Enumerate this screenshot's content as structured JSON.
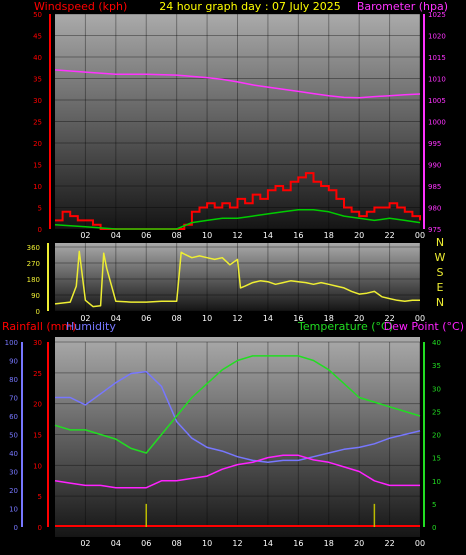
{
  "colors": {
    "background": "#000000",
    "wind": "#ff0000",
    "gust": "#ffffff",
    "wind_avg": "#00cc00",
    "barometer": "#ff33ff",
    "direction": "#eeee33",
    "humidity": "#7777ff",
    "temperature": "#22dd22",
    "dewpoint": "#ff22ff",
    "rainfall": "#ff0000",
    "rain_marker": "#bbbb00",
    "title": "#ffff00"
  },
  "header": {
    "windspeed_label": "Windspeed (kph)",
    "title": "24 hour graph day : 07 July 2025",
    "barometer_label": "Barometer (hpa)"
  },
  "chart_data": [
    {
      "type": "line",
      "name": "wind-barometer",
      "x_ticks": [
        "02",
        "04",
        "06",
        "08",
        "10",
        "12",
        "14",
        "16",
        "18",
        "20",
        "22",
        "00"
      ],
      "left_axis": {
        "label": "Windspeed (kph)",
        "ylim": [
          0,
          50
        ],
        "ticks": [
          0,
          5,
          10,
          15,
          20,
          25,
          30,
          35,
          40,
          45,
          50
        ]
      },
      "right_axis": {
        "label": "Barometer (hpa)",
        "ylim": [
          975,
          1025
        ],
        "ticks": [
          975,
          980,
          985,
          990,
          995,
          1000,
          1005,
          1010,
          1015,
          1020,
          1025
        ]
      },
      "barometer": {
        "x": [
          0,
          2,
          4,
          6,
          8,
          10,
          11,
          12,
          13,
          14,
          15,
          16,
          17,
          18,
          19,
          20,
          21,
          22,
          23,
          24
        ],
        "values": [
          1012,
          1011.5,
          1011,
          1011,
          1010.8,
          1010.2,
          1009.8,
          1009.2,
          1008.5,
          1008,
          1007.5,
          1007,
          1006.5,
          1006,
          1005.6,
          1005.5,
          1005.8,
          1006,
          1006.2,
          1006.4
        ]
      },
      "wind": {
        "x": [
          0,
          0.5,
          1,
          1.5,
          2,
          2.5,
          3,
          4,
          5,
          6,
          7,
          8,
          8.5,
          9,
          9.5,
          10,
          10.5,
          11,
          11.5,
          12,
          12.5,
          13,
          13.5,
          14,
          14.5,
          15,
          15.5,
          16,
          16.5,
          17,
          17.5,
          18,
          18.5,
          19,
          19.5,
          20,
          20.5,
          21,
          21.5,
          22,
          22.5,
          23,
          23.5,
          24
        ],
        "values": [
          2,
          4,
          3,
          2,
          2,
          1,
          0,
          0,
          0,
          0,
          0,
          0,
          1,
          4,
          5,
          6,
          5,
          6,
          5,
          7,
          6,
          8,
          7,
          9,
          10,
          9,
          11,
          12,
          13,
          11,
          10,
          9,
          7,
          5,
          4,
          3,
          4,
          5,
          5,
          6,
          5,
          4,
          3,
          2
        ]
      },
      "wind_avg": {
        "x": [
          0,
          2,
          4,
          6,
          8,
          9,
          10,
          11,
          12,
          13,
          14,
          15,
          16,
          17,
          18,
          19,
          20,
          21,
          22,
          23,
          24
        ],
        "values": [
          1,
          0.5,
          0,
          0,
          0,
          1.5,
          2,
          2.5,
          2.5,
          3,
          3.5,
          4,
          4.5,
          4.5,
          4,
          3,
          2.5,
          2,
          2.5,
          2,
          1.5
        ]
      }
    },
    {
      "type": "line",
      "name": "wind-direction",
      "x_ticks": [
        "02",
        "04",
        "06",
        "08",
        "10",
        "12",
        "14",
        "16",
        "18",
        "20",
        "22",
        "00"
      ],
      "left_axis": {
        "ylim": [
          0,
          360
        ],
        "ticks": [
          0,
          90,
          180,
          270,
          360
        ]
      },
      "right_axis": {
        "labels": [
          "N",
          "W",
          "S",
          "E",
          "N"
        ]
      },
      "series": {
        "x": [
          0,
          1,
          1.4,
          1.6,
          2,
          2.5,
          3,
          3.2,
          3.4,
          4,
          5,
          6,
          7,
          8,
          8.3,
          8.5,
          9,
          9.5,
          10,
          10.5,
          11,
          11.5,
          12,
          12.2,
          12.5,
          13,
          13.5,
          14,
          14.5,
          15,
          15.5,
          16,
          16.5,
          17,
          17.5,
          18,
          18.5,
          19,
          19.5,
          20,
          20.5,
          21,
          21.5,
          22,
          22.5,
          23,
          23.5,
          24
        ],
        "values": [
          40,
          50,
          140,
          335,
          60,
          25,
          30,
          325,
          240,
          55,
          50,
          50,
          55,
          55,
          330,
          320,
          300,
          310,
          300,
          290,
          300,
          260,
          290,
          130,
          140,
          160,
          170,
          165,
          150,
          160,
          170,
          165,
          160,
          150,
          160,
          150,
          140,
          130,
          110,
          95,
          100,
          110,
          80,
          70,
          60,
          55,
          60,
          60
        ]
      }
    },
    {
      "type": "line",
      "name": "rain-humidity-temperature",
      "x_ticks": [
        "02",
        "04",
        "06",
        "08",
        "10",
        "12",
        "14",
        "16",
        "18",
        "20",
        "22",
        "00"
      ],
      "legend": [
        "Rainfall (mm)",
        "Humidity",
        "Temperature (°C)",
        "Dew Point (°C)"
      ],
      "humidity_axis": {
        "label": "Humidity",
        "ylim": [
          0,
          100
        ],
        "ticks": [
          0,
          10,
          20,
          30,
          40,
          50,
          60,
          70,
          80,
          90,
          100
        ]
      },
      "rainfall_axis": {
        "label": "Rainfall (mm)",
        "ylim": [
          0,
          30
        ],
        "ticks": [
          0,
          5,
          10,
          15,
          20,
          25,
          30
        ]
      },
      "temperature_axis": {
        "label": "Temperature (°C)",
        "ylim": [
          0,
          40
        ],
        "ticks": [
          0,
          5,
          10,
          15,
          20,
          25,
          30,
          35,
          40
        ]
      },
      "temperature": {
        "x": [
          0,
          1,
          2,
          3,
          4,
          5,
          6,
          7,
          8,
          9,
          10,
          11,
          12,
          13,
          14,
          15,
          16,
          17,
          18,
          19,
          20,
          21,
          22,
          23,
          24
        ],
        "values": [
          22,
          21,
          21,
          20,
          19,
          17,
          16,
          20,
          24,
          28,
          31,
          34,
          36,
          37,
          37,
          37,
          37,
          36,
          34,
          31,
          28,
          27,
          26,
          25,
          24
        ]
      },
      "humidity": {
        "x": [
          0,
          1,
          2,
          3,
          4,
          5,
          6,
          7,
          8,
          9,
          10,
          11,
          12,
          13,
          14,
          15,
          16,
          17,
          18,
          19,
          20,
          21,
          22,
          23,
          24
        ],
        "values": [
          70,
          70,
          66,
          72,
          78,
          83,
          84,
          76,
          57,
          48,
          43,
          41,
          38,
          36,
          35,
          36,
          36,
          38,
          40,
          42,
          43,
          45,
          48,
          50,
          52
        ]
      },
      "dewpoint": {
        "x": [
          0,
          1,
          2,
          3,
          4,
          5,
          6,
          7,
          8,
          9,
          10,
          11,
          12,
          13,
          14,
          15,
          16,
          17,
          18,
          19,
          20,
          21,
          22,
          23,
          24
        ],
        "values": [
          10,
          9.5,
          9,
          9,
          8.5,
          8.5,
          8.5,
          10,
          10,
          10.5,
          11,
          12.5,
          13.5,
          14,
          15,
          15.5,
          15.5,
          14.5,
          14,
          13,
          12,
          10,
          9,
          9,
          9
        ]
      },
      "rainfall": {
        "x": [
          0,
          24
        ],
        "values": [
          0,
          0
        ]
      },
      "rain_markers": {
        "x": [
          6,
          21
        ],
        "values": [
          1.5,
          1.5
        ]
      }
    }
  ]
}
